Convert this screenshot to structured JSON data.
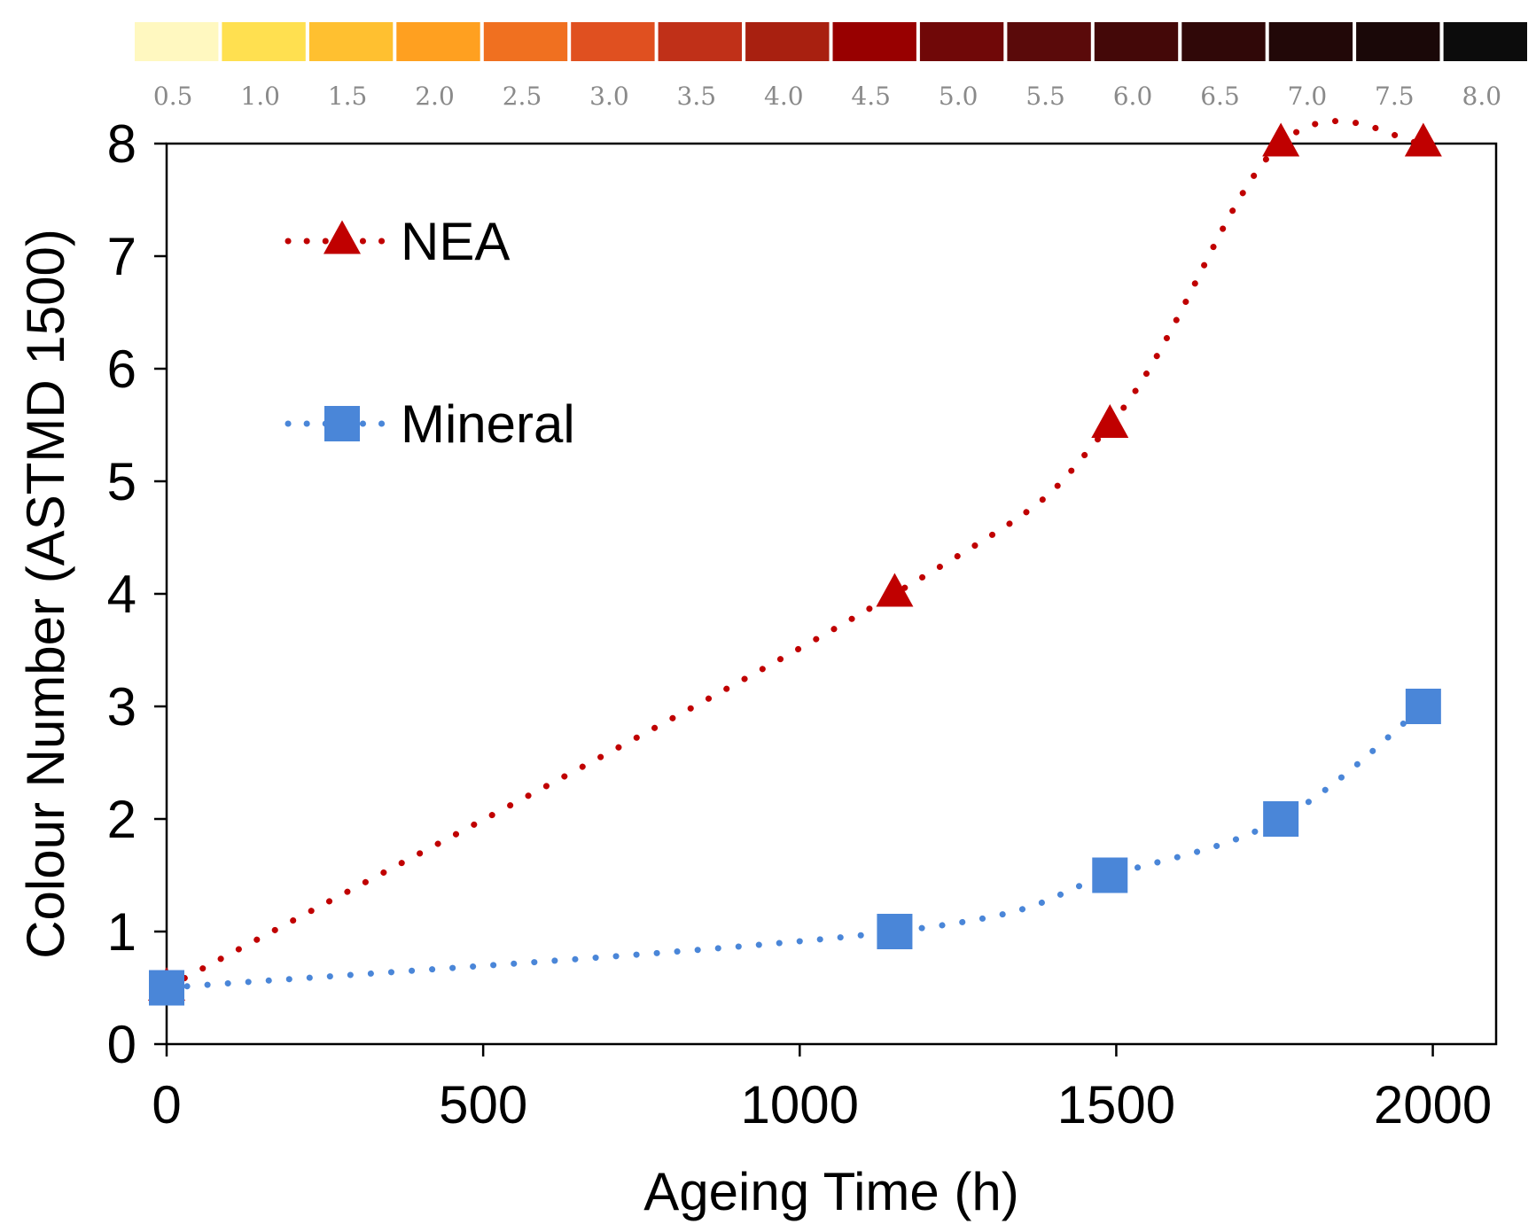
{
  "chart_data": {
    "type": "line",
    "title": "",
    "xlabel": "Ageing Time (h)",
    "ylabel": "Colour Number (ASTMD 1500)",
    "xlim": [
      0,
      2100
    ],
    "ylim": [
      0,
      8
    ],
    "xticks": [
      0,
      500,
      1000,
      1500,
      2000
    ],
    "yticks": [
      0,
      1,
      2,
      3,
      4,
      5,
      6,
      7,
      8
    ],
    "legend_position": "top-left",
    "series": [
      {
        "name": "NEA",
        "marker": "triangle",
        "line_style": "dotted",
        "color": "#c00000",
        "x": [
          0,
          1150,
          1490,
          1760,
          1985
        ],
        "y": [
          0.5,
          4.0,
          5.5,
          8.0,
          8.0
        ]
      },
      {
        "name": "Mineral",
        "marker": "square",
        "line_style": "dotted",
        "color": "#4a86d8",
        "x": [
          0,
          1150,
          1490,
          1760,
          1985
        ],
        "y": [
          0.5,
          1.0,
          1.5,
          2.0,
          3.0
        ]
      }
    ],
    "colour_scale": {
      "labels": [
        "0.5",
        "1.0",
        "1.5",
        "2.0",
        "2.5",
        "3.0",
        "3.5",
        "4.0",
        "4.5",
        "5.0",
        "5.5",
        "6.0",
        "6.5",
        "7.0",
        "7.5",
        "8.0"
      ],
      "colors": [
        "#fff8c0",
        "#ffe050",
        "#ffc030",
        "#ffa020",
        "#f07020",
        "#e05020",
        "#c03018",
        "#a82010",
        "#980000",
        "#700808",
        "#5a0a0a",
        "#440808",
        "#300808",
        "#220808",
        "#1a0808",
        "#0c0c0c"
      ]
    }
  }
}
